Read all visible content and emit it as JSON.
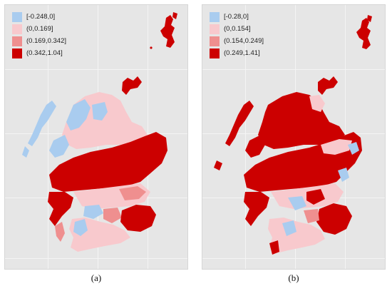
{
  "colors": {
    "negative": "#a9ccef",
    "low": "#f8c9cd",
    "mid": "#ef8f8f",
    "high": "#cc0000"
  },
  "panels": [
    {
      "id": "a",
      "caption": "(a)",
      "legend": [
        {
          "label": "[-0.248,0]",
          "color": "#a9ccef"
        },
        {
          "label": "(0,0.169]",
          "color": "#f8c9cd"
        },
        {
          "label": "(0.169,0.342]",
          "color": "#ef8f8f"
        },
        {
          "label": "(0.342,1.04]",
          "color": "#cc0000"
        }
      ]
    },
    {
      "id": "b",
      "caption": "(b)",
      "legend": [
        {
          "label": "[-0.28,0]",
          "color": "#a9ccef"
        },
        {
          "label": "(0,0.154]",
          "color": "#f8c9cd"
        },
        {
          "label": "(0.154,0.249]",
          "color": "#ef8f8f"
        },
        {
          "label": "(0.249,1.41]",
          "color": "#cc0000"
        }
      ]
    }
  ]
}
